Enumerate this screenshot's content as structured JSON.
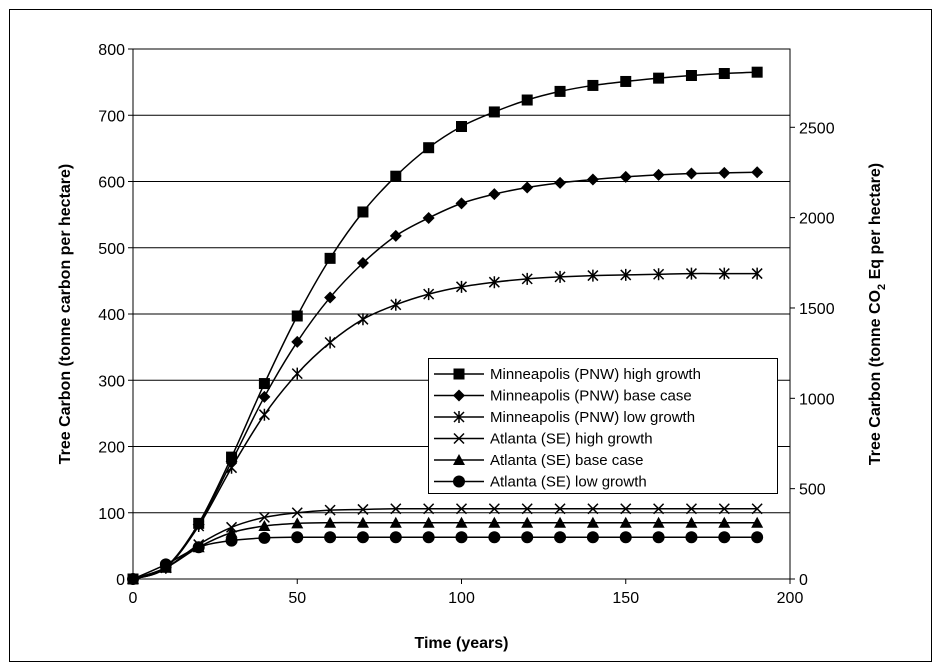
{
  "chart_data": {
    "type": "line",
    "title": "",
    "xlabel": "Time (years)",
    "ylabel": "Tree Carbon (tonne carbon per hectare)",
    "ylabel_right": {
      "prefix": "Tree Carbon (tonne CO",
      "sub": "2",
      "suffix": " Eq per hectare)"
    },
    "xlim": [
      0,
      200
    ],
    "ylim": [
      0,
      800
    ],
    "y2lim": [
      0,
      2933.3
    ],
    "x_ticks": [
      0,
      50,
      100,
      150,
      200
    ],
    "y_ticks": [
      0,
      100,
      200,
      300,
      400,
      500,
      600,
      700,
      800
    ],
    "y2_ticks": [
      0,
      500,
      1000,
      1500,
      2000,
      2500
    ],
    "grid": "horizontal",
    "legend_position": "center-right",
    "x": [
      0,
      10,
      20,
      30,
      40,
      50,
      60,
      70,
      80,
      90,
      100,
      110,
      120,
      130,
      140,
      150,
      160,
      170,
      180,
      190
    ],
    "series": [
      {
        "name": "Minneapolis (PNW) high growth",
        "marker": "square",
        "values": [
          0,
          18,
          84,
          184,
          295,
          397,
          484,
          554,
          608,
          651,
          683,
          705,
          723,
          736,
          745,
          751,
          756,
          760,
          763,
          765
        ]
      },
      {
        "name": "Minneapolis (PNW) base case",
        "marker": "diamond",
        "values": [
          0,
          17,
          82,
          177,
          275,
          358,
          425,
          477,
          518,
          545,
          567,
          581,
          591,
          598,
          603,
          607,
          610,
          612,
          613,
          614
        ]
      },
      {
        "name": "Minneapolis (PNW) low growth",
        "marker": "asterisk",
        "values": [
          0,
          17,
          80,
          168,
          248,
          310,
          357,
          392,
          414,
          430,
          441,
          448,
          453,
          456,
          458,
          459,
          460,
          461,
          461,
          461
        ]
      },
      {
        "name": "Atlanta (SE) high growth",
        "marker": "x",
        "values": [
          0,
          17,
          52,
          78,
          93,
          100,
          104,
          105,
          106,
          106,
          106,
          106,
          106,
          106,
          106,
          106,
          106,
          106,
          106,
          106
        ]
      },
      {
        "name": "Atlanta (SE) base case",
        "marker": "triangle",
        "values": [
          0,
          17,
          48,
          70,
          80,
          84,
          85,
          85,
          85,
          85,
          85,
          85,
          85,
          85,
          85,
          85,
          85,
          85,
          85,
          85
        ]
      },
      {
        "name": "Atlanta (SE) low growth",
        "marker": "circle",
        "values": [
          0,
          22,
          48,
          58,
          62,
          63,
          63,
          63,
          63,
          63,
          63,
          63,
          63,
          63,
          63,
          63,
          63,
          63,
          63,
          63
        ]
      }
    ],
    "colors": {
      "line": "#000000",
      "grid": "#000000",
      "background": "#ffffff"
    }
  }
}
